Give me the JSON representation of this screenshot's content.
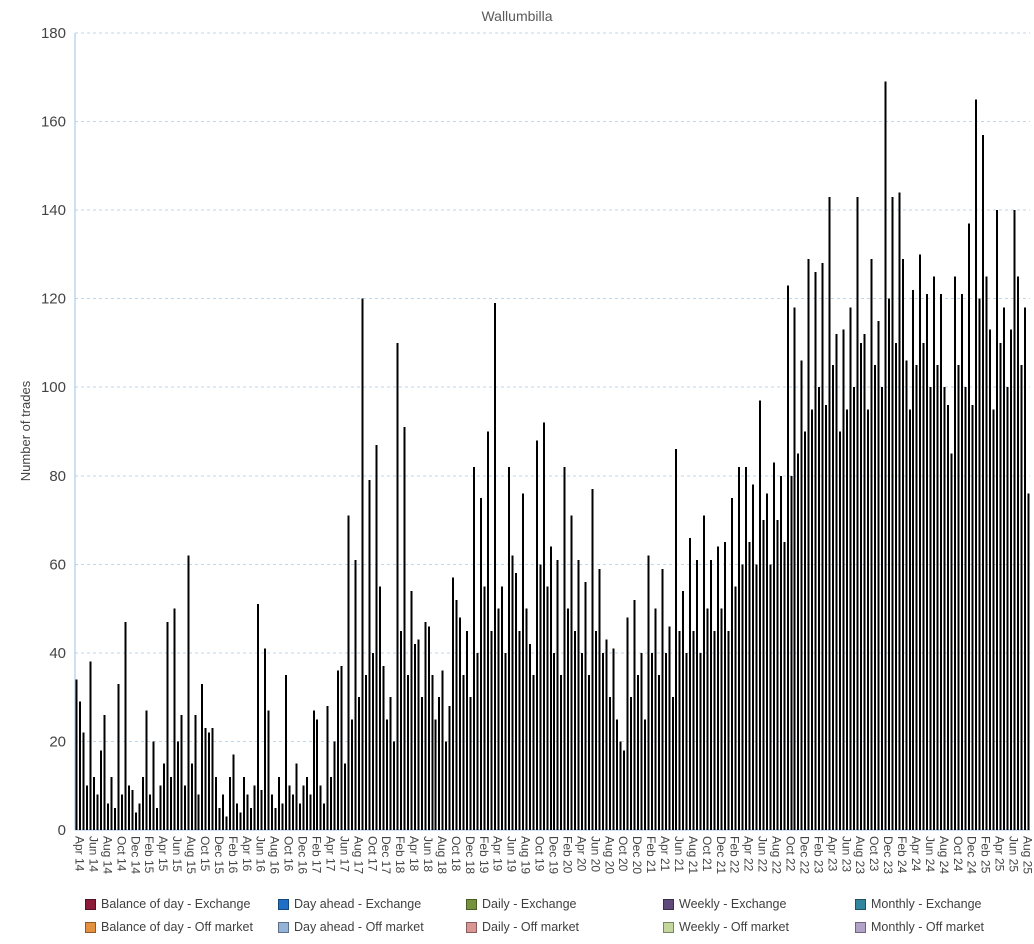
{
  "title": "Wallumbilla",
  "colors": {
    "bar": "#000000",
    "grid": "#BDD7EE",
    "axis": "#9CC3E5",
    "title_text": "#595959",
    "tick_text": "#444444",
    "legend_text": "#404040"
  },
  "legend": {
    "items": [
      {
        "label": "Balance of day - Exchange",
        "fill": "#8C1A39",
        "border": "#511026"
      },
      {
        "label": "Day ahead - Exchange",
        "fill": "#1F6FC4",
        "border": "#14477D"
      },
      {
        "label": "Daily - Exchange",
        "fill": "#76923C",
        "border": "#4A5C26"
      },
      {
        "label": "Weekly - Exchange",
        "fill": "#5F497A",
        "border": "#3B2D4C"
      },
      {
        "label": "Monthly - Exchange",
        "fill": "#31859C",
        "border": "#1E5260"
      },
      {
        "label": "Balance of day - Off market",
        "fill": "#E3903F",
        "border": "#8F5A27"
      },
      {
        "label": "Day ahead - Off market",
        "fill": "#95B3D7",
        "border": "#5D7087"
      },
      {
        "label": "Daily - Off market",
        "fill": "#D99694",
        "border": "#885E5D"
      },
      {
        "label": "Weekly - Off market",
        "fill": "#C3D69B",
        "border": "#7A8661"
      },
      {
        "label": "Monthly - Off market",
        "fill": "#B2A2C7",
        "border": "#6F667D"
      }
    ]
  },
  "chart_data": {
    "type": "bar",
    "title": "Wallumbilla",
    "xlabel": "",
    "ylabel": "Number of trades",
    "ylim": [
      0,
      180
    ],
    "grid": true,
    "legend_position": "bottom",
    "bar_color": "#000000",
    "y_ticks": [
      0,
      20,
      40,
      60,
      80,
      100,
      120,
      140,
      160,
      180
    ],
    "x_range": "Apr 2014 - Aug 2025, approx. fortnightly bars (2 per month), values estimated from gridlines",
    "x_tick_labels": [
      "Apr 14",
      "Jun 14",
      "Aug 14",
      "Oct 14",
      "Dec 14",
      "Feb 15",
      "Apr 15",
      "Jun 15",
      "Aug 15",
      "Oct 15",
      "Dec 15",
      "Feb 16",
      "Apr 16",
      "Jun 16",
      "Aug 16",
      "Oct 16",
      "Dec 16",
      "Feb 17",
      "Apr 17",
      "Jun 17",
      "Aug 17",
      "Oct 17",
      "Dec 17",
      "Feb 18",
      "Apr 18",
      "Jun 18",
      "Aug 18",
      "Oct 18",
      "Dec 18",
      "Feb 19",
      "Apr 19",
      "Jun 19",
      "Aug 19",
      "Oct 19",
      "Dec 19",
      "Feb 20",
      "Apr 20",
      "Jun 20",
      "Aug 20",
      "Oct 20",
      "Dec 20",
      "Feb 21",
      "Apr 21",
      "Jun 21",
      "Aug 21",
      "Oct 21",
      "Dec 21",
      "Feb 22",
      "Apr 22",
      "Jun 22",
      "Aug 22",
      "Oct 22",
      "Dec 22",
      "Feb 23",
      "Apr 23",
      "Jun 23",
      "Aug 23",
      "Oct 23",
      "Dec 23",
      "Feb 24",
      "Apr 24",
      "Jun 24",
      "Aug 24",
      "Oct 24",
      "Dec 24",
      "Feb 25",
      "Apr 25",
      "Jun 25",
      "Aug 25"
    ],
    "values": [
      34,
      29,
      22,
      10,
      38,
      12,
      8,
      18,
      26,
      6,
      12,
      5,
      33,
      8,
      47,
      10,
      9,
      4,
      6,
      12,
      27,
      8,
      20,
      5,
      10,
      15,
      47,
      12,
      50,
      20,
      26,
      10,
      62,
      15,
      26,
      8,
      33,
      23,
      22,
      23,
      12,
      5,
      8,
      3,
      12,
      17,
      6,
      4,
      12,
      8,
      5,
      10,
      51,
      9,
      41,
      27,
      8,
      5,
      12,
      6,
      35,
      10,
      8,
      15,
      6,
      10,
      12,
      8,
      27,
      25,
      10,
      6,
      28,
      12,
      20,
      36,
      37,
      15,
      71,
      25,
      61,
      30,
      120,
      35,
      79,
      40,
      87,
      55,
      37,
      25,
      30,
      20,
      110,
      45,
      91,
      35,
      54,
      42,
      43,
      30,
      47,
      46,
      35,
      25,
      30,
      36,
      20,
      28,
      57,
      52,
      48,
      35,
      45,
      30,
      82,
      40,
      75,
      55,
      90,
      45,
      119,
      50,
      55,
      40,
      82,
      62,
      58,
      45,
      76,
      50,
      42,
      35,
      88,
      60,
      92,
      55,
      64,
      40,
      61,
      35,
      82,
      50,
      71,
      45,
      61,
      40,
      56,
      35,
      77,
      45,
      59,
      40,
      43,
      30,
      41,
      25,
      20,
      18,
      48,
      30,
      52,
      35,
      40,
      25,
      62,
      40,
      50,
      35,
      59,
      40,
      46,
      30,
      86,
      45,
      54,
      40,
      66,
      45,
      61,
      40,
      71,
      50,
      61,
      45,
      64,
      50,
      65,
      45,
      75,
      55,
      82,
      60,
      82,
      65,
      78,
      60,
      97,
      70,
      76,
      60,
      83,
      70,
      80,
      65,
      123,
      80,
      118,
      85,
      106,
      90,
      129,
      95,
      126,
      100,
      128,
      96,
      143,
      105,
      112,
      90,
      113,
      95,
      118,
      100,
      143,
      110,
      112,
      95,
      129,
      105,
      115,
      100,
      169,
      120,
      143,
      110,
      144,
      129,
      106,
      95,
      122,
      105,
      130,
      110,
      121,
      100,
      125,
      105,
      121,
      100,
      96,
      85,
      125,
      105,
      121,
      100,
      137,
      96,
      165,
      120,
      157,
      125,
      113,
      95,
      140,
      110,
      118,
      100,
      113,
      140,
      125,
      105,
      118,
      76
    ]
  }
}
